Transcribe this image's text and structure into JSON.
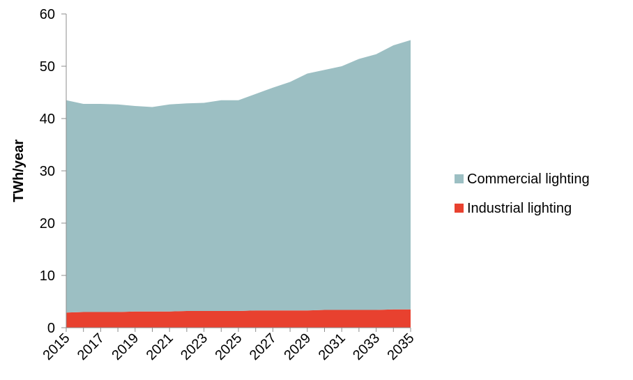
{
  "chart_data": {
    "type": "area",
    "stacked": true,
    "title": "",
    "xlabel": "",
    "ylabel": "TWh/year",
    "xlim": [
      2015,
      2035
    ],
    "ylim": [
      0,
      60
    ],
    "yticks": [
      0,
      10,
      20,
      30,
      40,
      50,
      60
    ],
    "xtick_labels": [
      "2015",
      "2017",
      "2019",
      "2021",
      "2023",
      "2025",
      "2027",
      "2029",
      "2031",
      "2033",
      "2035"
    ],
    "grid": false,
    "legend_position": "right",
    "x": [
      2015,
      2016,
      2017,
      2018,
      2019,
      2020,
      2021,
      2022,
      2023,
      2024,
      2025,
      2026,
      2027,
      2028,
      2029,
      2030,
      2031,
      2032,
      2033,
      2034,
      2035
    ],
    "series": [
      {
        "name": "Industrial lighting",
        "color": "#e8412f",
        "values": [
          2.9,
          3.0,
          3.0,
          3.0,
          3.1,
          3.1,
          3.1,
          3.2,
          3.2,
          3.2,
          3.2,
          3.3,
          3.3,
          3.3,
          3.3,
          3.4,
          3.4,
          3.4,
          3.4,
          3.5,
          3.5
        ]
      },
      {
        "name": "Commercial lighting",
        "color": "#9cbfc3",
        "values": [
          40.6,
          39.8,
          39.8,
          39.7,
          39.3,
          39.1,
          39.6,
          39.7,
          39.8,
          40.3,
          40.3,
          41.4,
          42.6,
          43.7,
          45.3,
          45.9,
          46.6,
          48.0,
          48.9,
          50.5,
          51.5
        ]
      }
    ],
    "legend": [
      {
        "label": "Commercial lighting",
        "color": "#9cbfc3"
      },
      {
        "label": "Industrial lighting",
        "color": "#e8412f"
      }
    ]
  }
}
